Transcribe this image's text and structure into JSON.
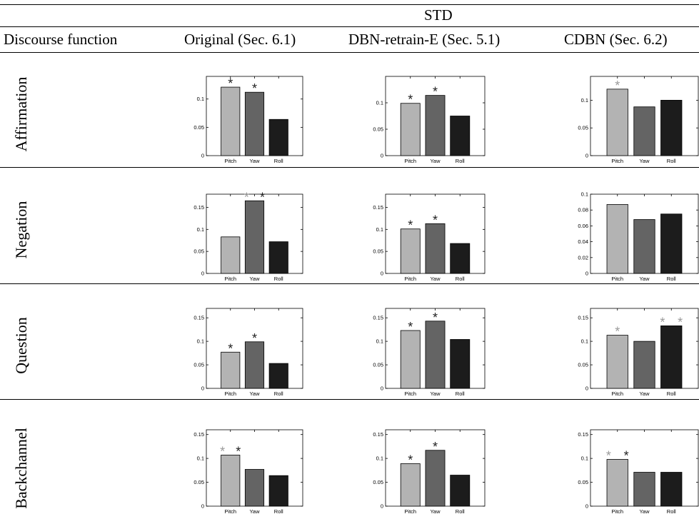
{
  "header": {
    "super": "STD",
    "col0": "Discourse function",
    "cols": [
      "Original (Sec. 6.1)",
      "DBN-retrain-E (Sec. 5.1)",
      "CDBN (Sec. 6.2)"
    ]
  },
  "rows": [
    "Affirmation",
    "Negation",
    "Question",
    "Backchannel"
  ],
  "colors": {
    "pitch": "#b3b3b3",
    "yaw": "#646464",
    "roll": "#1c1c1c",
    "star_black": "#222222",
    "star_gray": "#9a9a9a"
  },
  "chart_data": [
    {
      "type": "bar",
      "row": "Affirmation",
      "column": "Original (Sec. 6.1)",
      "categories": [
        "Pitch",
        "Yaw",
        "Roll"
      ],
      "values": [
        0.121,
        0.112,
        0.064
      ],
      "ylim": [
        0,
        0.14
      ],
      "yticks": [
        "0",
        "0.05",
        "0.1"
      ],
      "stars": [
        [
          "black"
        ],
        [
          "black"
        ],
        []
      ]
    },
    {
      "type": "bar",
      "row": "Affirmation",
      "column": "DBN-retrain-E (Sec. 5.1)",
      "categories": [
        "Pitch",
        "Yaw",
        "Roll"
      ],
      "values": [
        0.099,
        0.114,
        0.075
      ],
      "ylim": [
        0,
        0.15
      ],
      "yticks": [
        "0",
        "0.05",
        "0.1"
      ],
      "stars": [
        [
          "black"
        ],
        [
          "black"
        ],
        []
      ]
    },
    {
      "type": "bar",
      "row": "Affirmation",
      "column": "CDBN (Sec. 6.2)",
      "categories": [
        "Pitch",
        "Yaw",
        "Roll"
      ],
      "values": [
        0.12,
        0.088,
        0.1
      ],
      "ylim": [
        0,
        0.143
      ],
      "yticks": [
        "0",
        "0.05",
        "0.1"
      ],
      "stars": [
        [
          "gray"
        ],
        [],
        []
      ]
    },
    {
      "type": "bar",
      "row": "Negation",
      "column": "Original (Sec. 6.1)",
      "categories": [
        "Pitch",
        "Yaw",
        "Roll"
      ],
      "values": [
        0.083,
        0.165,
        0.072
      ],
      "ylim": [
        0,
        0.18
      ],
      "yticks": [
        "0",
        "0.05",
        "0.1",
        "0.15"
      ],
      "stars": [
        [],
        [
          "gray",
          "black"
        ],
        []
      ]
    },
    {
      "type": "bar",
      "row": "Negation",
      "column": "DBN-retrain-E (Sec. 5.1)",
      "categories": [
        "Pitch",
        "Yaw",
        "Roll"
      ],
      "values": [
        0.101,
        0.113,
        0.068
      ],
      "ylim": [
        0,
        0.18
      ],
      "yticks": [
        "0",
        "0.05",
        "0.1",
        "0.15"
      ],
      "stars": [
        [
          "black"
        ],
        [
          "black"
        ],
        []
      ]
    },
    {
      "type": "bar",
      "row": "Negation",
      "column": "CDBN (Sec. 6.2)",
      "categories": [
        "Pitch",
        "Yaw",
        "Roll"
      ],
      "values": [
        0.087,
        0.068,
        0.075
      ],
      "ylim": [
        0,
        0.1
      ],
      "yticks": [
        "0",
        "0.02",
        "0.04",
        "0.06",
        "0.08",
        "0.1"
      ],
      "stars": [
        [],
        [],
        []
      ]
    },
    {
      "type": "bar",
      "row": "Question",
      "column": "Original (Sec. 6.1)",
      "categories": [
        "Pitch",
        "Yaw",
        "Roll"
      ],
      "values": [
        0.077,
        0.099,
        0.053
      ],
      "ylim": [
        0,
        0.17
      ],
      "yticks": [
        "0",
        "0.05",
        "0.1",
        "0.15"
      ],
      "stars": [
        [
          "black"
        ],
        [
          "black"
        ],
        []
      ]
    },
    {
      "type": "bar",
      "row": "Question",
      "column": "DBN-retrain-E (Sec. 5.1)",
      "categories": [
        "Pitch",
        "Yaw",
        "Roll"
      ],
      "values": [
        0.123,
        0.143,
        0.104
      ],
      "ylim": [
        0,
        0.17
      ],
      "yticks": [
        "0",
        "0.05",
        "0.1",
        "0.15"
      ],
      "stars": [
        [
          "black"
        ],
        [
          "black"
        ],
        []
      ]
    },
    {
      "type": "bar",
      "row": "Question",
      "column": "CDBN (Sec. 6.2)",
      "categories": [
        "Pitch",
        "Yaw",
        "Roll"
      ],
      "values": [
        0.113,
        0.1,
        0.133
      ],
      "ylim": [
        0,
        0.17
      ],
      "yticks": [
        "0",
        "0.05",
        "0.1",
        "0.15"
      ],
      "stars": [
        [
          "gray"
        ],
        [],
        [
          "gray",
          "gray"
        ]
      ]
    },
    {
      "type": "bar",
      "row": "Backchannel",
      "column": "Original (Sec. 6.1)",
      "categories": [
        "Pitch",
        "Yaw",
        "Roll"
      ],
      "values": [
        0.107,
        0.077,
        0.064
      ],
      "ylim": [
        0,
        0.16
      ],
      "yticks": [
        "0",
        "0.05",
        "0.1",
        "0.15"
      ],
      "stars": [
        [
          "gray",
          "black"
        ],
        [],
        []
      ]
    },
    {
      "type": "bar",
      "row": "Backchannel",
      "column": "DBN-retrain-E (Sec. 5.1)",
      "categories": [
        "Pitch",
        "Yaw",
        "Roll"
      ],
      "values": [
        0.089,
        0.117,
        0.065
      ],
      "ylim": [
        0,
        0.16
      ],
      "yticks": [
        "0",
        "0.05",
        "0.1",
        "0.15"
      ],
      "stars": [
        [
          "black"
        ],
        [
          "black"
        ],
        []
      ]
    },
    {
      "type": "bar",
      "row": "Backchannel",
      "column": "CDBN (Sec. 6.2)",
      "categories": [
        "Pitch",
        "Yaw",
        "Roll"
      ],
      "values": [
        0.098,
        0.071,
        0.071
      ],
      "ylim": [
        0,
        0.16
      ],
      "yticks": [
        "0",
        "0.05",
        "0.1",
        "0.15"
      ],
      "stars": [
        [
          "gray",
          "black"
        ],
        [],
        []
      ]
    }
  ]
}
